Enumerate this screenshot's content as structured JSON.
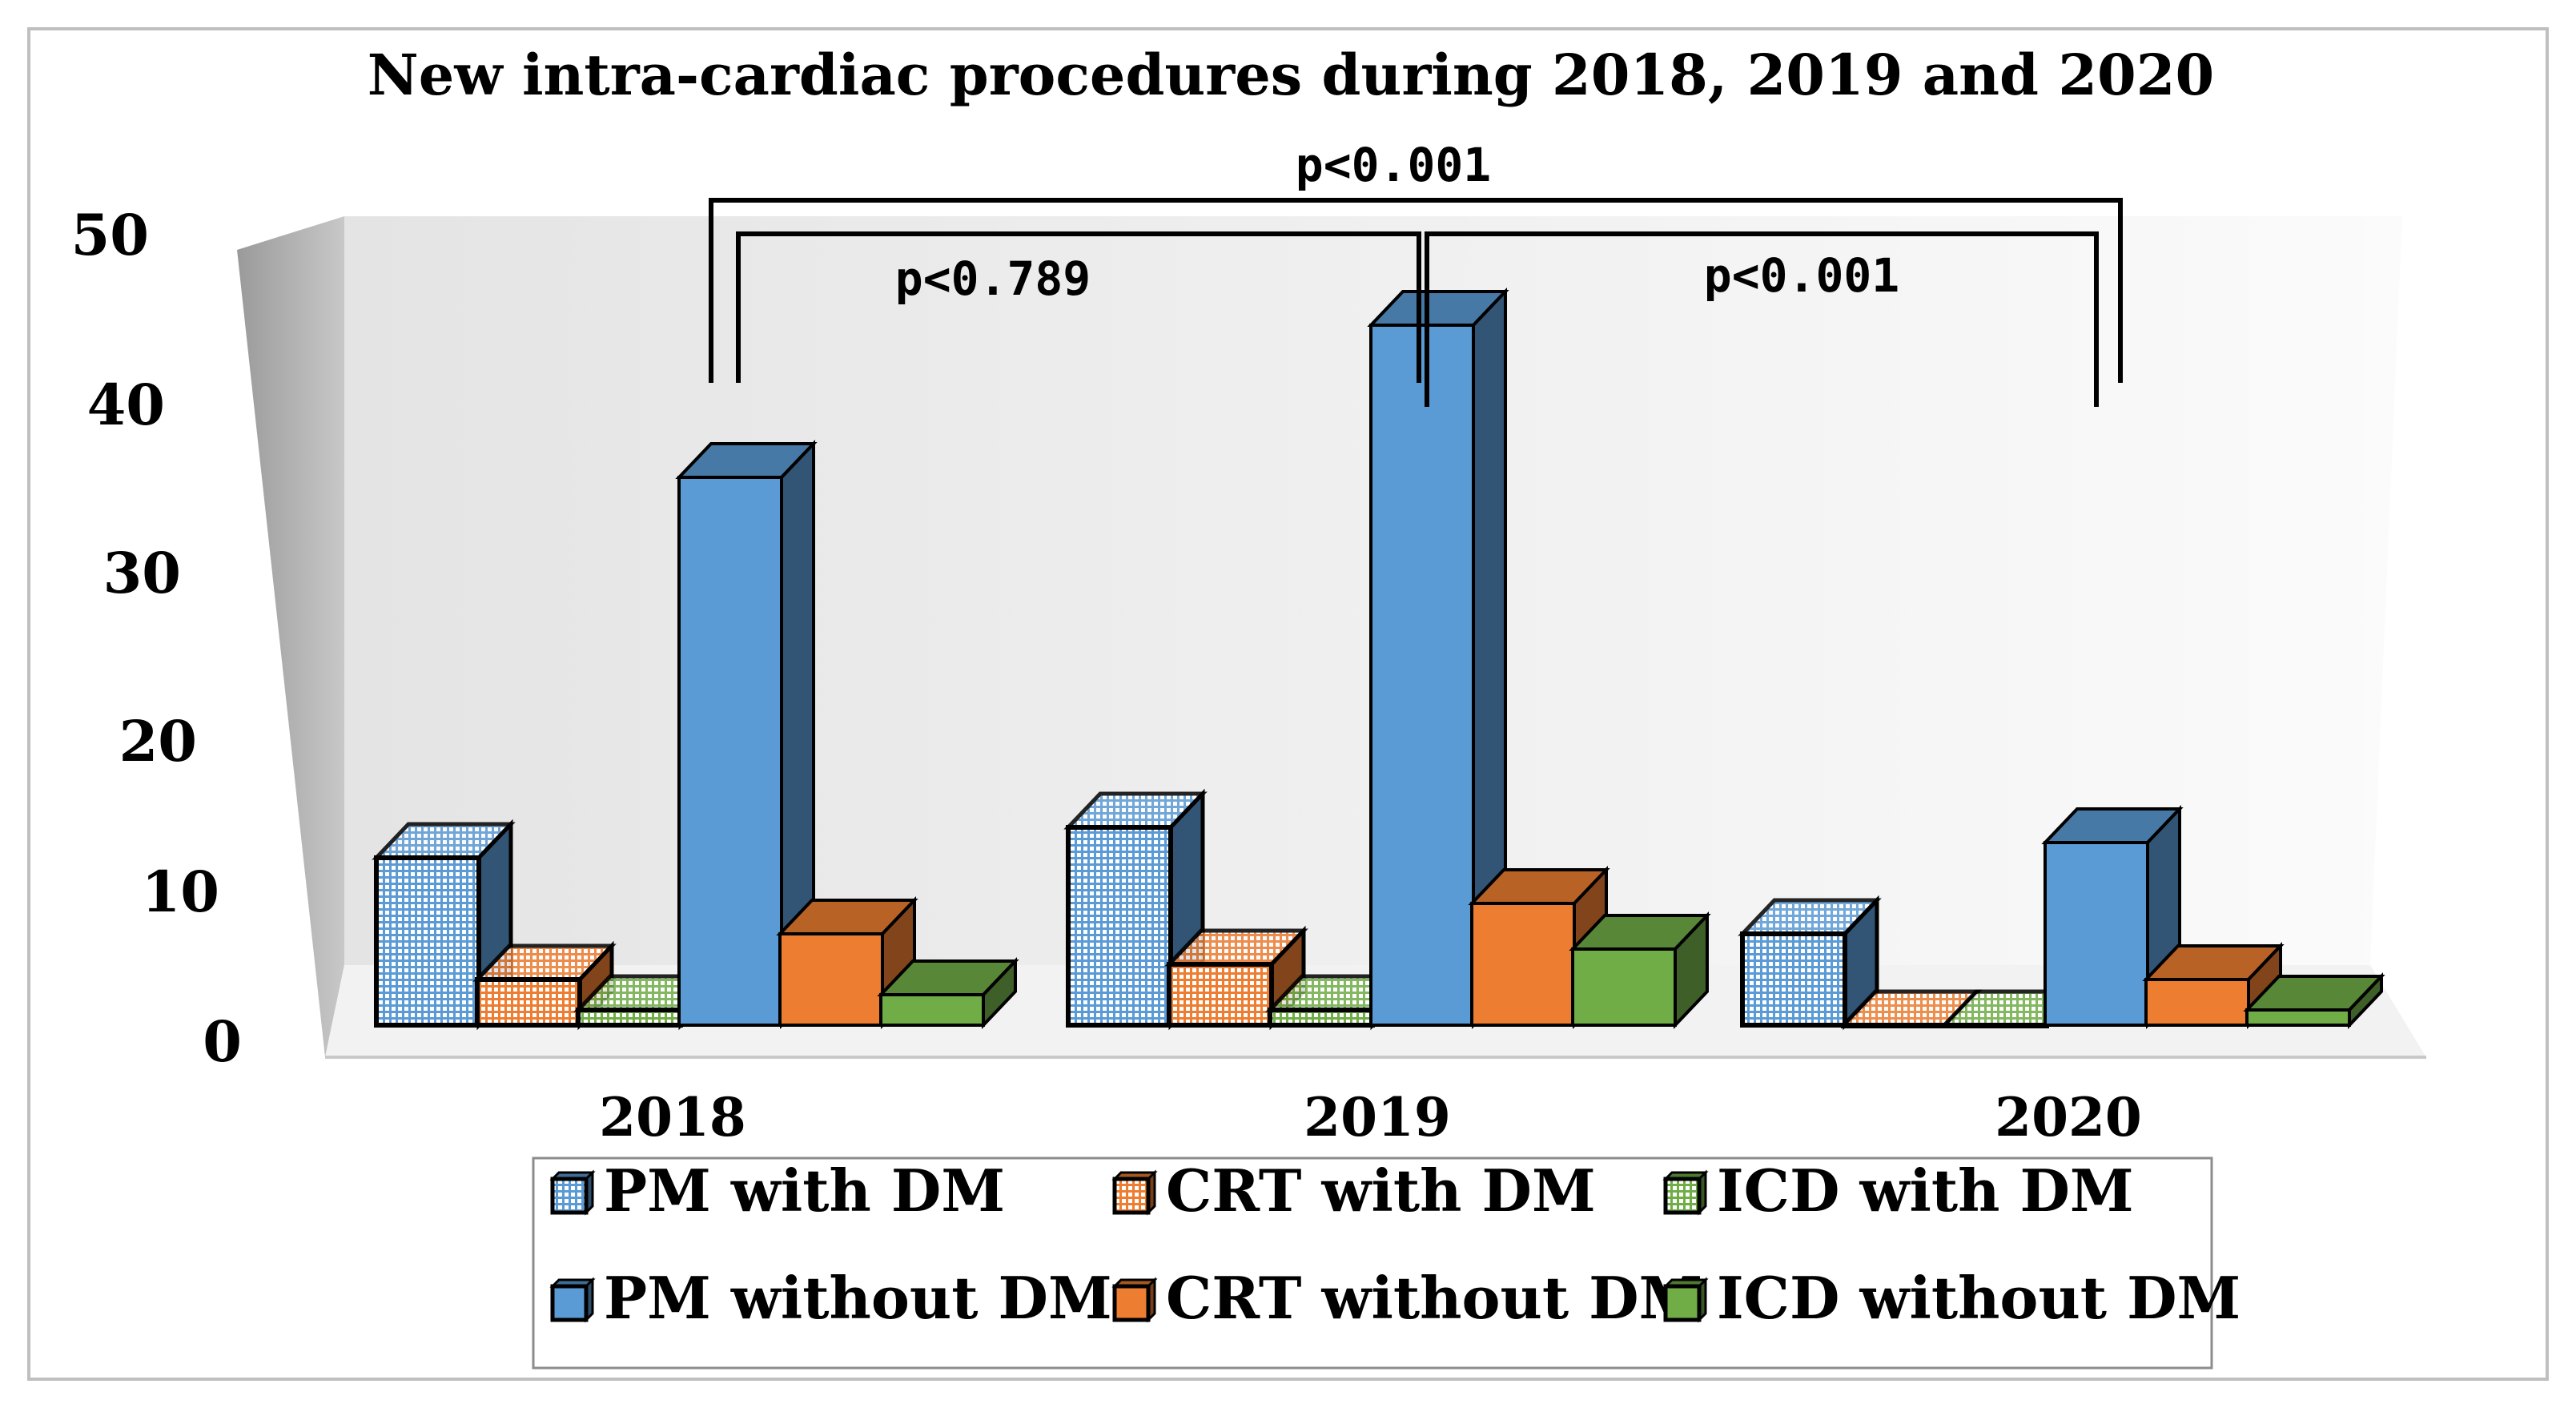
{
  "chart_data": {
    "type": "bar",
    "title": "New intra-cardiac procedures during 2018, 2019 and 2020",
    "xlabel": "",
    "ylabel": "",
    "ylim": [
      0,
      50
    ],
    "yticks": [
      "0",
      "10",
      "20",
      "30",
      "40",
      "50"
    ],
    "categories": [
      "2018",
      "2019",
      "2020"
    ],
    "series": [
      {
        "name": "PM with DM",
        "values": [
          11,
          13,
          6
        ],
        "color": "#5b9bd5",
        "pattern": "grid"
      },
      {
        "name": "CRT with DM",
        "values": [
          3,
          4,
          0
        ],
        "color": "#ed7d31",
        "pattern": "grid"
      },
      {
        "name": "ICD with DM",
        "values": [
          1,
          1,
          0
        ],
        "color": "#70ad47",
        "pattern": "grid"
      },
      {
        "name": "PM without DM",
        "values": [
          36,
          46,
          12
        ],
        "color": "#5b9bd5",
        "pattern": "solid"
      },
      {
        "name": "CRT without DM",
        "values": [
          6,
          8,
          3
        ],
        "color": "#ed7d31",
        "pattern": "solid"
      },
      {
        "name": "ICD without DM",
        "values": [
          2,
          5,
          1
        ],
        "color": "#70ad47",
        "pattern": "solid"
      }
    ],
    "annotations": [
      {
        "label": "p<0.001",
        "from": "2018",
        "to": "2020"
      },
      {
        "label": "p<0.789",
        "from": "2018",
        "to": "2019"
      },
      {
        "label": "p<0.001",
        "from": "2019",
        "to": "2020"
      }
    ],
    "legend": "bottom-center"
  }
}
